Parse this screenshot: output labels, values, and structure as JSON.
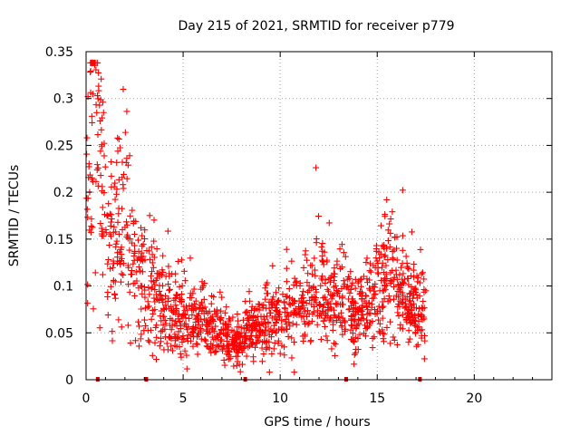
{
  "chart_data": {
    "type": "scatter",
    "title": "Day 215 of 2021, SRMTID for receiver p779",
    "xlabel": "GPS time / hours",
    "ylabel": "SRMTID / TECUs",
    "xlim": [
      0,
      24
    ],
    "ylim": [
      0,
      0.35
    ],
    "x_ticks": [
      "0",
      "5",
      "10",
      "15",
      "20"
    ],
    "x_tick_values": [
      0,
      5,
      10,
      15,
      20
    ],
    "y_ticks": [
      "0",
      "0.05",
      "0.1",
      "0.15",
      "0.2",
      "0.25",
      "0.3",
      "0.35"
    ],
    "y_tick_values": [
      0,
      0.05,
      0.1,
      0.15,
      0.2,
      0.25,
      0.3,
      0.35
    ],
    "grid": true,
    "marker": "+",
    "color": "#ff0000",
    "marker_bar_color": "#cc0000",
    "axis_markers_x": [
      0.6,
      3.1,
      8.2,
      13.4,
      17.2
    ],
    "series": [
      {
        "name": "SRMTID",
        "trend": [
          [
            0.0,
            0.2
          ],
          [
            0.25,
            0.29
          ],
          [
            0.5,
            0.28
          ],
          [
            0.75,
            0.23
          ],
          [
            1.0,
            0.17
          ],
          [
            1.5,
            0.16
          ],
          [
            2.0,
            0.17
          ],
          [
            2.5,
            0.12
          ],
          [
            3.0,
            0.1
          ],
          [
            3.5,
            0.085
          ],
          [
            4.0,
            0.075
          ],
          [
            4.5,
            0.07
          ],
          [
            5.0,
            0.065
          ],
          [
            5.5,
            0.06
          ],
          [
            6.0,
            0.06
          ],
          [
            6.5,
            0.055
          ],
          [
            7.0,
            0.05
          ],
          [
            7.5,
            0.04
          ],
          [
            8.0,
            0.035
          ],
          [
            8.2,
            0.055
          ],
          [
            8.6,
            0.055
          ],
          [
            9.0,
            0.06
          ],
          [
            9.5,
            0.06
          ],
          [
            10.0,
            0.06
          ],
          [
            10.5,
            0.07
          ],
          [
            11.0,
            0.08
          ],
          [
            11.5,
            0.09
          ],
          [
            12.0,
            0.1
          ],
          [
            12.5,
            0.09
          ],
          [
            13.0,
            0.085
          ],
          [
            13.5,
            0.08
          ],
          [
            14.0,
            0.07
          ],
          [
            14.5,
            0.075
          ],
          [
            15.0,
            0.1
          ],
          [
            15.5,
            0.1
          ],
          [
            16.0,
            0.095
          ],
          [
            16.5,
            0.08
          ],
          [
            17.0,
            0.075
          ],
          [
            17.5,
            0.08
          ]
        ],
        "x_range": [
          0.0,
          17.5
        ],
        "sample_count": 1500
      }
    ]
  }
}
